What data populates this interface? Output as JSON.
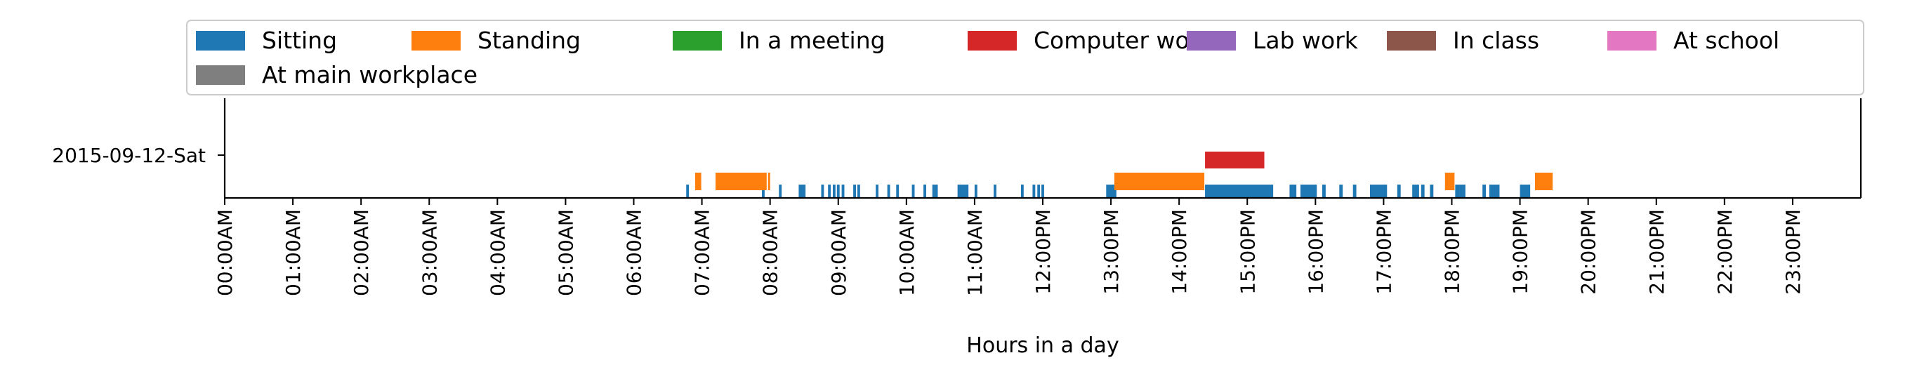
{
  "chart_data": {
    "type": "timeline",
    "xlabel": "Hours in a day",
    "xlim": [
      0,
      24
    ],
    "x_ticks": [
      {
        "value": 0,
        "label": "00:00AM"
      },
      {
        "value": 1,
        "label": "01:00AM"
      },
      {
        "value": 2,
        "label": "02:00AM"
      },
      {
        "value": 3,
        "label": "03:00AM"
      },
      {
        "value": 4,
        "label": "04:00AM"
      },
      {
        "value": 5,
        "label": "05:00AM"
      },
      {
        "value": 6,
        "label": "06:00AM"
      },
      {
        "value": 7,
        "label": "07:00AM"
      },
      {
        "value": 8,
        "label": "08:00AM"
      },
      {
        "value": 9,
        "label": "09:00AM"
      },
      {
        "value": 10,
        "label": "10:00AM"
      },
      {
        "value": 11,
        "label": "11:00AM"
      },
      {
        "value": 12,
        "label": "12:00PM"
      },
      {
        "value": 13,
        "label": "13:00PM"
      },
      {
        "value": 14,
        "label": "14:00PM"
      },
      {
        "value": 15,
        "label": "15:00PM"
      },
      {
        "value": 16,
        "label": "16:00PM"
      },
      {
        "value": 17,
        "label": "17:00PM"
      },
      {
        "value": 18,
        "label": "18:00PM"
      },
      {
        "value": 19,
        "label": "19:00PM"
      },
      {
        "value": 20,
        "label": "20:00PM"
      },
      {
        "value": 21,
        "label": "21:00PM"
      },
      {
        "value": 22,
        "label": "22:00PM"
      },
      {
        "value": 23,
        "label": "23:00PM"
      }
    ],
    "y_ticks": [
      {
        "label": "2015-09-12-Sat"
      }
    ],
    "legend": {
      "placement": "top",
      "columns": 7
    },
    "series": [
      {
        "name": "Sitting",
        "color": "#1f77b4",
        "intervals": [
          [
            6.77,
            6.81
          ],
          [
            7.88,
            7.92
          ],
          [
            8.13,
            8.17
          ],
          [
            8.42,
            8.52
          ],
          [
            8.75,
            8.79
          ],
          [
            8.85,
            8.89
          ],
          [
            8.92,
            8.96
          ],
          [
            8.98,
            9.02
          ],
          [
            9.05,
            9.09
          ],
          [
            9.22,
            9.26
          ],
          [
            9.28,
            9.32
          ],
          [
            9.55,
            9.59
          ],
          [
            9.72,
            9.76
          ],
          [
            9.85,
            9.89
          ],
          [
            10.08,
            10.12
          ],
          [
            10.25,
            10.29
          ],
          [
            10.38,
            10.42
          ],
          [
            10.42,
            10.46
          ],
          [
            10.75,
            10.91
          ],
          [
            11.0,
            11.04
          ],
          [
            11.28,
            11.32
          ],
          [
            11.68,
            11.72
          ],
          [
            11.85,
            11.89
          ],
          [
            11.92,
            11.96
          ],
          [
            11.98,
            12.02
          ],
          [
            12.93,
            13.08
          ],
          [
            14.38,
            15.38
          ],
          [
            15.62,
            15.72
          ],
          [
            15.78,
            16.02
          ],
          [
            16.1,
            16.15
          ],
          [
            16.35,
            16.4
          ],
          [
            16.55,
            16.6
          ],
          [
            16.8,
            17.05
          ],
          [
            17.2,
            17.25
          ],
          [
            17.42,
            17.52
          ],
          [
            17.55,
            17.6
          ],
          [
            17.68,
            17.73
          ],
          [
            18.05,
            18.2
          ],
          [
            18.45,
            18.5
          ],
          [
            18.55,
            18.7
          ],
          [
            19.0,
            19.15
          ]
        ]
      },
      {
        "name": "Standing",
        "color": "#ff7f0e",
        "intervals": [
          [
            6.9,
            6.99
          ],
          [
            7.2,
            7.95
          ],
          [
            7.97,
            8.0
          ],
          [
            13.05,
            14.37
          ],
          [
            17.9,
            18.04
          ],
          [
            19.22,
            19.48
          ]
        ]
      },
      {
        "name": "In a meeting",
        "color": "#2ca02c",
        "intervals": []
      },
      {
        "name": "Computer work",
        "color": "#d62728",
        "intervals": [
          [
            14.38,
            15.25
          ]
        ]
      },
      {
        "name": "Lab work",
        "color": "#9467bd",
        "intervals": []
      },
      {
        "name": "In class",
        "color": "#8c564b",
        "intervals": []
      },
      {
        "name": "At school",
        "color": "#e377c2",
        "intervals": []
      },
      {
        "name": "At main workplace",
        "color": "#7f7f7f",
        "intervals": []
      }
    ]
  }
}
